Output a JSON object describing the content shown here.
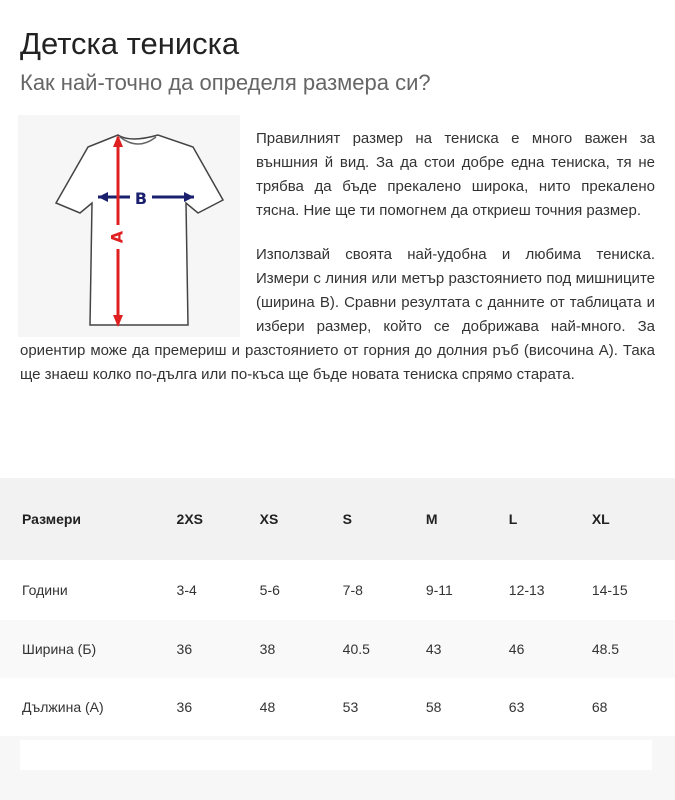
{
  "title": "Детска тениска",
  "subtitle": "Как най-точно да определя размера си?",
  "image": {
    "icon": "tshirt-measurement-diagram",
    "labels": {
      "height": "A",
      "width": "B"
    },
    "colors": {
      "height_arrow": "#e02020",
      "width_arrow": "#1a1f6e"
    }
  },
  "paragraphs": [
    "Правилният размер на тениска е много важен за външния й вид. За да стои добре една тениска, тя не трябва да бъде прекалено широка, нито прекалено тясна. Ние ще ти помогнем да откриеш точния размер.",
    "Използвай своята най-удобна и любима тениска. Измери с линия или метър разстоянието под мишниците (ширина В). Сравни резултата с данните от таблицата и избери размер, който се добрижава най-много. За ориентир може да премериш и разстоянието от горния до долния ръб (височина А). Така ще знаеш колко по-дълга или по-къса ще бъде новата тениска спрямо старата."
  ],
  "table": {
    "header": [
      "Размери",
      "2XS",
      "XS",
      "S",
      "M",
      "L",
      "XL"
    ],
    "rows": [
      [
        "Години",
        "3-4",
        "5-6",
        "7-8",
        "9-11",
        "12-13",
        "14-15"
      ],
      [
        "Ширина (Б)",
        "36",
        "38",
        "40.5",
        "43",
        "46",
        "48.5"
      ],
      [
        "Дължина (А)",
        "36",
        "48",
        "53",
        "58",
        "63",
        "68"
      ]
    ]
  }
}
